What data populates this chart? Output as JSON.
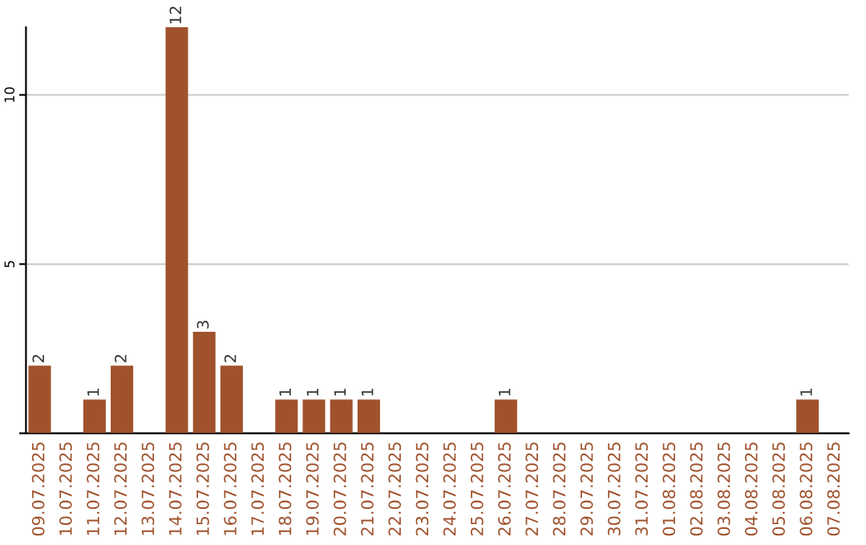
{
  "chart_data": {
    "type": "bar",
    "categories": [
      "09.07.2025",
      "10.07.2025",
      "11.07.2025",
      "12.07.2025",
      "13.07.2025",
      "14.07.2025",
      "15.07.2025",
      "16.07.2025",
      "17.07.2025",
      "18.07.2025",
      "19.07.2025",
      "20.07.2025",
      "21.07.2025",
      "22.07.2025",
      "23.07.2025",
      "24.07.2025",
      "25.07.2025",
      "26.07.2025",
      "27.07.2025",
      "28.07.2025",
      "29.07.2025",
      "30.07.2025",
      "31.07.2025",
      "01.08.2025",
      "02.08.2025",
      "03.08.2025",
      "04.08.2025",
      "05.08.2025",
      "06.08.2025",
      "07.08.2025"
    ],
    "values": [
      2,
      0,
      1,
      2,
      0,
      12,
      3,
      2,
      0,
      1,
      1,
      1,
      1,
      0,
      0,
      0,
      0,
      1,
      0,
      0,
      0,
      0,
      0,
      0,
      0,
      0,
      0,
      0,
      1,
      0
    ],
    "value_labels": [
      "2",
      null,
      "1",
      "2",
      null,
      "12",
      "3",
      "2",
      null,
      "1",
      "1",
      "1",
      "1",
      null,
      null,
      null,
      null,
      "1",
      null,
      null,
      null,
      null,
      null,
      null,
      null,
      null,
      null,
      null,
      "1",
      null
    ],
    "color": "#a0522d",
    "ylim": [
      0,
      12
    ],
    "yticks": [
      {
        "value": 0,
        "label": null
      },
      5,
      10
    ],
    "grid": "y",
    "legend": false
  }
}
